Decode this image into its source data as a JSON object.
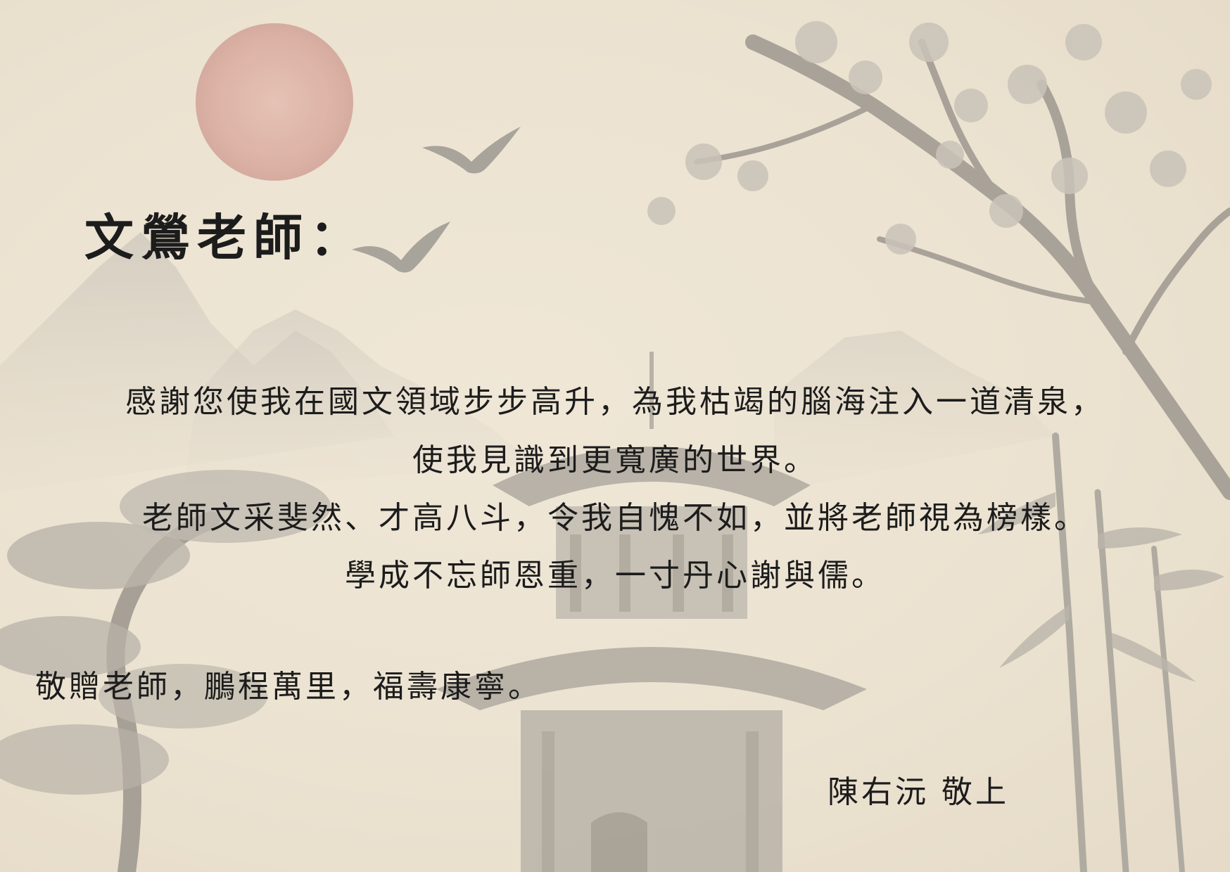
{
  "salutation": "文鶯老師：",
  "body_lines": [
    "感謝您使我在國文領域步步高升，為我枯竭的腦海注入一道清泉，",
    "使我見識到更寬廣的世界。",
    "老師文采斐然、才高八斗，令我自愧不如，並將老師視為榜樣。",
    "學成不忘師恩重，一寸丹心謝與儒。"
  ],
  "blessing": "敬贈老師，鵬程萬里，福壽康寧。",
  "signature": "陳右沅  敬上",
  "colors": {
    "paper": "#ece3d2",
    "ink": "#1c1c1c",
    "sun": "#c97c72",
    "wash": "#8a8a85"
  },
  "illustration_elements": [
    "red-sun",
    "flying-birds",
    "misty-mountains",
    "pagoda",
    "plum-blossom-branch",
    "pine-tree",
    "bamboo"
  ]
}
